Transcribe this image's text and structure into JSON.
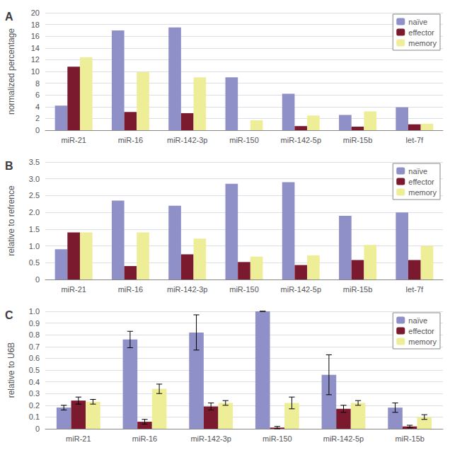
{
  "chart_data": [
    {
      "type": "bar",
      "title": "A",
      "categories": [
        "miR-21",
        "miR-16",
        "miR-142-3p",
        "miR-150",
        "miR-142-5p",
        "miR-15b",
        "let-7f"
      ],
      "series": [
        {
          "name": "naïve",
          "color": "#9090c8",
          "values": [
            4.2,
            17.0,
            17.5,
            9.0,
            6.2,
            2.6,
            3.9
          ]
        },
        {
          "name": "effector",
          "color": "#7b1a2e",
          "values": [
            10.8,
            3.1,
            2.9,
            0.0,
            0.7,
            0.6,
            1.0
          ]
        },
        {
          "name": "memory",
          "color": "#eeee99",
          "values": [
            12.4,
            9.9,
            9.0,
            1.7,
            2.5,
            3.2,
            1.1
          ]
        }
      ],
      "ylabel": "normalized percentage",
      "ylim": [
        0,
        20
      ],
      "yticks": [
        0,
        2,
        4,
        6,
        8,
        10,
        12,
        14,
        16,
        18,
        20
      ],
      "grid": true,
      "legend": "upper right"
    },
    {
      "type": "bar",
      "title": "B",
      "categories": [
        "miR-21",
        "miR-16",
        "miR-142-3p",
        "miR-150",
        "miR-142-5p",
        "miR-15b",
        "let-7f"
      ],
      "series": [
        {
          "name": "naïve",
          "color": "#9090c8",
          "values": [
            0.9,
            2.35,
            2.2,
            2.85,
            2.9,
            1.9,
            2.0
          ]
        },
        {
          "name": "effector",
          "color": "#7b1a2e",
          "values": [
            1.4,
            0.4,
            0.75,
            0.52,
            0.43,
            0.58,
            0.58
          ]
        },
        {
          "name": "memory",
          "color": "#eeee99",
          "values": [
            1.4,
            1.4,
            1.22,
            0.68,
            0.72,
            1.03,
            1.0
          ]
        }
      ],
      "ylabel": "relative to refrence",
      "ylim": [
        0,
        3.5
      ],
      "yticks": [
        0,
        0.5,
        {
          "value": 1.0,
          "label": "1.0"
        },
        1.5,
        {
          "value": 2.0,
          "label": "2.0"
        },
        2.5,
        {
          "value": 3.0,
          "label": "3.0"
        },
        3.5
      ],
      "grid": true,
      "legend": "upper right"
    },
    {
      "type": "bar",
      "title": "C",
      "categories": [
        "miR-21",
        "miR-16",
        "miR-142-3p",
        "miR-150",
        "miR-142-5p",
        "miR-15b"
      ],
      "series": [
        {
          "name": "naïve",
          "color": "#9090c8",
          "values": [
            0.18,
            0.76,
            0.82,
            1.0,
            0.46,
            0.18
          ],
          "errors": [
            0.02,
            0.07,
            0.15,
            0.0,
            0.17,
            0.04
          ]
        },
        {
          "name": "effector",
          "color": "#7b1a2e",
          "values": [
            0.24,
            0.06,
            0.19,
            0.01,
            0.17,
            0.02
          ],
          "errors": [
            0.03,
            0.02,
            0.03,
            0.01,
            0.03,
            0.01
          ]
        },
        {
          "name": "memory",
          "color": "#eeee99",
          "values": [
            0.23,
            0.34,
            0.22,
            0.22,
            0.22,
            0.1
          ],
          "errors": [
            0.02,
            0.04,
            0.02,
            0.05,
            0.02,
            0.02
          ]
        }
      ],
      "ylabel": "relative to U6B",
      "ylim": [
        0,
        1.0
      ],
      "yticks": [
        0,
        0.1,
        0.2,
        0.3,
        0.4,
        0.5,
        0.6,
        0.7,
        0.8,
        0.9,
        {
          "value": 1.0,
          "label": "1.0"
        }
      ],
      "grid": true,
      "legend": "upper right"
    }
  ]
}
